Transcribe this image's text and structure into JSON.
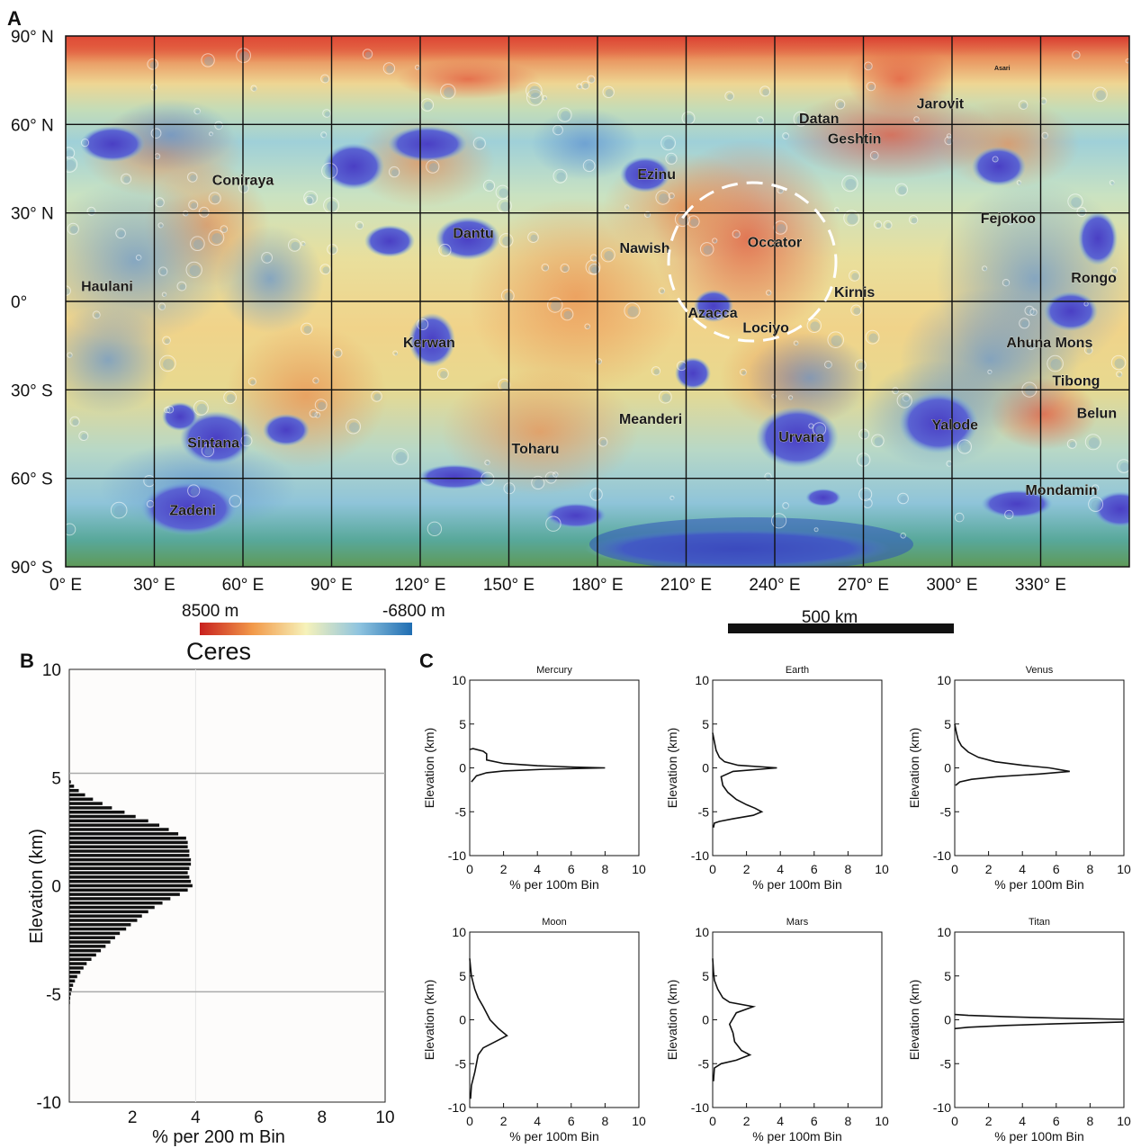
{
  "panels": {
    "a": "A",
    "b": "B",
    "c": "C"
  },
  "panel_a": {
    "lat_labels": [
      "90° N",
      "60° N",
      "30° N",
      "0°",
      "30° S",
      "60° S",
      "90° S"
    ],
    "lon_labels": [
      "0° E",
      "30° E",
      "60° E",
      "90° E",
      "120° E",
      "150° E",
      "180° E",
      "210° E",
      "240° E",
      "270° E",
      "300° E",
      "330° E"
    ],
    "features": [
      {
        "name": "Asari",
        "lon": 317,
        "lat": 80
      },
      {
        "name": "Jarovit",
        "lon": 296,
        "lat": 67
      },
      {
        "name": "Datan",
        "lon": 255,
        "lat": 62
      },
      {
        "name": "Geshtin",
        "lon": 267,
        "lat": 55
      },
      {
        "name": "Coniraya",
        "lon": 60,
        "lat": 41
      },
      {
        "name": "Ezinu",
        "lon": 200,
        "lat": 43
      },
      {
        "name": "Fejokoo",
        "lon": 319,
        "lat": 28
      },
      {
        "name": "Dantu",
        "lon": 138,
        "lat": 23
      },
      {
        "name": "Nawish",
        "lon": 196,
        "lat": 18
      },
      {
        "name": "Occator",
        "lon": 240,
        "lat": 20
      },
      {
        "name": "Haulani",
        "lon": 14,
        "lat": 5
      },
      {
        "name": "Rongo",
        "lon": 348,
        "lat": 8
      },
      {
        "name": "Kirnis",
        "lon": 267,
        "lat": 3
      },
      {
        "name": "Azacca",
        "lon": 219,
        "lat": -4
      },
      {
        "name": "Lociyo",
        "lon": 237,
        "lat": -9
      },
      {
        "name": "Kerwan",
        "lon": 123,
        "lat": -14
      },
      {
        "name": "Ahuna Mons",
        "lon": 333,
        "lat": -14
      },
      {
        "name": "Tibong",
        "lon": 342,
        "lat": -27
      },
      {
        "name": "Belun",
        "lon": 349,
        "lat": -38
      },
      {
        "name": "Meanderi",
        "lon": 198,
        "lat": -40
      },
      {
        "name": "Yalode",
        "lon": 301,
        "lat": -42
      },
      {
        "name": "Urvara",
        "lon": 249,
        "lat": -46
      },
      {
        "name": "Sintana",
        "lon": 50,
        "lat": -48
      },
      {
        "name": "Toharu",
        "lon": 159,
        "lat": -50
      },
      {
        "name": "Mondamin",
        "lon": 337,
        "lat": -64
      },
      {
        "name": "Zadeni",
        "lon": 43,
        "lat": -71
      }
    ],
    "colorbar": {
      "min_label": "8500 m",
      "max_label": "-6800 m",
      "colors": [
        "#c8201e",
        "#f29a4a",
        "#f6f2ba",
        "#8fc4df",
        "#1f6db2"
      ]
    },
    "scalebar_label": "500 km"
  },
  "chart_data": [
    {
      "type": "bar",
      "orientation": "horizontal",
      "title": "Ceres",
      "xlabel": "% per 200 m Bin",
      "ylabel": "Elevation (km)",
      "xlim": [
        0,
        10
      ],
      "ylim": [
        -10,
        10
      ],
      "x_ticks": [
        "2",
        "4",
        "6",
        "8",
        "10"
      ],
      "y_ticks": [
        "10",
        "5",
        "0",
        "-5",
        "-10"
      ],
      "reference_lines_y": [
        5.2,
        -4.9
      ],
      "elevation_bins_km": [
        4.8,
        4.6,
        4.4,
        4.2,
        4.0,
        3.8,
        3.6,
        3.4,
        3.2,
        3.0,
        2.8,
        2.6,
        2.4,
        2.2,
        2.0,
        1.8,
        1.6,
        1.4,
        1.2,
        1.0,
        0.8,
        0.6,
        0.4,
        0.2,
        0.0,
        -0.2,
        -0.4,
        -0.6,
        -0.8,
        -1.0,
        -1.2,
        -1.4,
        -1.6,
        -1.8,
        -2.0,
        -2.2,
        -2.4,
        -2.6,
        -2.8,
        -3.0,
        -3.2,
        -3.4,
        -3.6,
        -3.8,
        -4.0,
        -4.2,
        -4.4,
        -4.6,
        -4.8,
        -5.0,
        -5.2,
        -5.4
      ],
      "values": [
        0.05,
        0.15,
        0.3,
        0.5,
        0.75,
        1.05,
        1.35,
        1.75,
        2.1,
        2.5,
        2.85,
        3.15,
        3.45,
        3.7,
        3.75,
        3.75,
        3.8,
        3.8,
        3.85,
        3.85,
        3.8,
        3.75,
        3.8,
        3.85,
        3.9,
        3.75,
        3.5,
        3.2,
        2.95,
        2.7,
        2.5,
        2.3,
        2.15,
        1.95,
        1.8,
        1.6,
        1.45,
        1.3,
        1.15,
        1.0,
        0.85,
        0.7,
        0.55,
        0.45,
        0.35,
        0.25,
        0.18,
        0.12,
        0.08,
        0.05,
        0.03,
        0.02
      ]
    },
    {
      "type": "line",
      "title": "Mercury",
      "xlabel": "% per 100m Bin",
      "ylabel": "Elevation (km)",
      "xlim": [
        0,
        10
      ],
      "ylim": [
        -10,
        10
      ],
      "x_ticks": [
        "0",
        "2",
        "4",
        "6",
        "8",
        "10"
      ],
      "y_ticks": [
        "10",
        "5",
        "0",
        "-5",
        "-10"
      ],
      "x": [
        0.0,
        0.2,
        0.8,
        1.0,
        1.0,
        2.0,
        4.0,
        6.0,
        8.0,
        4.5,
        2.0,
        1.0,
        0.4,
        0.1
      ],
      "y": [
        2.1,
        2.2,
        1.9,
        1.6,
        0.9,
        0.5,
        0.25,
        0.1,
        0.0,
        -0.15,
        -0.35,
        -0.55,
        -0.9,
        -1.6
      ]
    },
    {
      "type": "line",
      "title": "Earth",
      "xlabel": "% per 100m Bin",
      "ylabel": "Elevation (km)",
      "xlim": [
        0,
        10
      ],
      "ylim": [
        -10,
        10
      ],
      "x_ticks": [
        "0",
        "2",
        "4",
        "6",
        "8",
        "10"
      ],
      "y_ticks": [
        "10",
        "5",
        "0",
        "-5",
        "-10"
      ],
      "x": [
        0.0,
        0.1,
        0.2,
        0.4,
        0.7,
        1.5,
        3.8,
        1.2,
        0.5,
        0.6,
        0.9,
        1.4,
        2.0,
        2.5,
        2.9,
        2.4,
        1.2,
        0.4,
        0.1,
        0.05
      ],
      "y": [
        4.0,
        3.0,
        2.0,
        1.2,
        0.7,
        0.3,
        0.0,
        -0.4,
        -1.0,
        -2.0,
        -2.8,
        -3.6,
        -4.2,
        -4.6,
        -5.0,
        -5.4,
        -5.8,
        -6.1,
        -6.3,
        -6.8
      ]
    },
    {
      "type": "line",
      "title": "Venus",
      "xlabel": "% per 100m Bin",
      "ylabel": "Elevation (km)",
      "xlim": [
        0,
        10
      ],
      "ylim": [
        -10,
        10
      ],
      "x_ticks": [
        "0",
        "2",
        "4",
        "6",
        "8",
        "10"
      ],
      "y_ticks": [
        "10",
        "5",
        "0",
        "-5",
        "-10"
      ],
      "x": [
        0.0,
        0.1,
        0.2,
        0.4,
        0.8,
        1.4,
        2.4,
        4.0,
        5.6,
        6.8,
        5.0,
        2.5,
        1.0,
        0.3,
        0.05
      ],
      "y": [
        5.0,
        4.0,
        3.2,
        2.5,
        1.8,
        1.2,
        0.7,
        0.3,
        0.0,
        -0.4,
        -0.7,
        -1.0,
        -1.3,
        -1.6,
        -2.0
      ]
    },
    {
      "type": "line",
      "title": "Moon",
      "xlabel": "% per 100m Bin",
      "ylabel": "Elevation (km)",
      "xlim": [
        0,
        10
      ],
      "ylim": [
        -10,
        10
      ],
      "x_ticks": [
        "0",
        "2",
        "4",
        "6",
        "8",
        "10"
      ],
      "y_ticks": [
        "10",
        "5",
        "0",
        "-5",
        "-10"
      ],
      "x": [
        0.0,
        0.05,
        0.1,
        0.3,
        0.5,
        0.8,
        1.2,
        1.7,
        2.2,
        1.5,
        0.8,
        0.5,
        0.4,
        0.3,
        0.1,
        0.05
      ],
      "y": [
        7.0,
        6.0,
        5.0,
        3.5,
        2.5,
        1.5,
        0.0,
        -1.0,
        -1.8,
        -2.5,
        -3.2,
        -4.0,
        -5.0,
        -6.0,
        -7.5,
        -9.0
      ]
    },
    {
      "type": "line",
      "title": "Mars",
      "xlabel": "% per 100m Bin",
      "ylabel": "Elevation (km)",
      "xlim": [
        0,
        10
      ],
      "ylim": [
        -10,
        10
      ],
      "x_ticks": [
        "0",
        "2",
        "4",
        "6",
        "8",
        "10"
      ],
      "y_ticks": [
        "10",
        "5",
        "0",
        "-5",
        "-10"
      ],
      "x": [
        0.0,
        0.05,
        0.1,
        0.3,
        0.6,
        1.0,
        2.4,
        1.4,
        1.0,
        1.2,
        1.3,
        1.7,
        2.2,
        1.4,
        0.5,
        0.1,
        0.05
      ],
      "y": [
        7.0,
        5.5,
        4.5,
        3.5,
        2.5,
        2.0,
        1.5,
        0.8,
        -0.5,
        -1.5,
        -2.5,
        -3.5,
        -4.0,
        -4.6,
        -5.0,
        -5.5,
        -7.0
      ]
    },
    {
      "type": "line",
      "title": "Titan",
      "xlabel": "% per 100m Bin",
      "ylabel": "Elevation (km)",
      "xlim": [
        0,
        10
      ],
      "ylim": [
        -10,
        10
      ],
      "x_ticks": [
        "0",
        "2",
        "4",
        "6",
        "8",
        "10"
      ],
      "y_ticks": [
        "10",
        "5",
        "0",
        "-5",
        "-10"
      ],
      "x": [
        0.0,
        0.8,
        3.0,
        6.0,
        10.0
      ],
      "y": [
        0.6,
        0.5,
        0.35,
        0.2,
        0.05
      ],
      "x2": [
        0.0,
        0.8,
        3.0,
        6.0,
        10.0
      ],
      "y2": [
        -1.0,
        -0.85,
        -0.65,
        -0.45,
        -0.25
      ]
    }
  ]
}
